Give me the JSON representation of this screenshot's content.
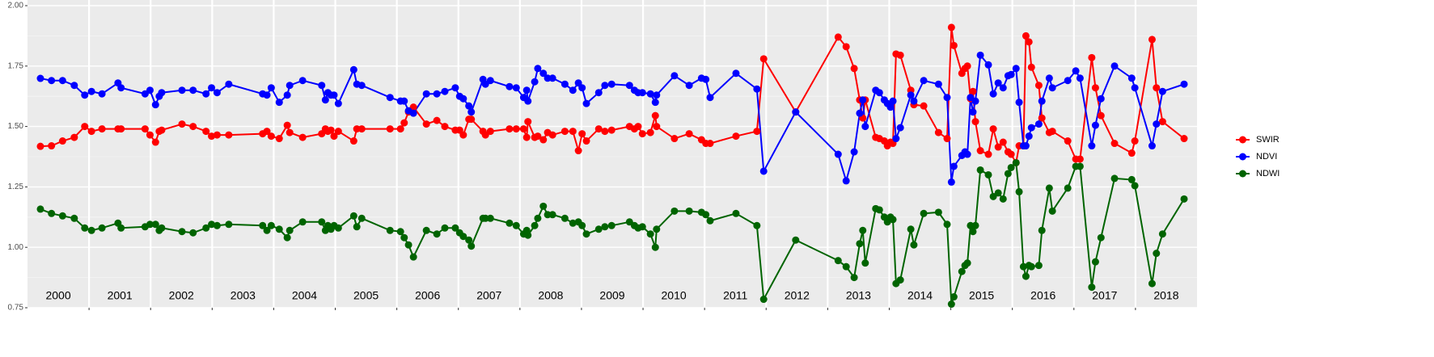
{
  "chart_data": {
    "type": "line",
    "x": [
      2000.21,
      2000.39,
      2000.57,
      2000.76,
      2000.93,
      2001.04,
      2001.21,
      2001.47,
      2001.52,
      2001.91,
      2001.99,
      2002.08,
      2002.14,
      2002.18,
      2002.51,
      2002.69,
      2002.9,
      2002.99,
      2003.08,
      2003.27,
      2003.82,
      2003.89,
      2003.96,
      2004.09,
      2004.22,
      2004.26,
      2004.47,
      2004.78,
      2004.84,
      2004.88,
      2004.93,
      2004.98,
      2005.05,
      2005.3,
      2005.35,
      2005.43,
      2005.89,
      2006.06,
      2006.12,
      2006.19,
      2006.27,
      2006.48,
      2006.65,
      2006.78,
      2006.95,
      2007.02,
      2007.08,
      2007.17,
      2007.21,
      2007.4,
      2007.44,
      2007.52,
      2007.83,
      2007.94,
      2008.06,
      2008.11,
      2008.13,
      2008.24,
      2008.29,
      2008.38,
      2008.45,
      2008.53,
      2008.73,
      2008.86,
      2008.95,
      2009.01,
      2009.08,
      2009.28,
      2009.38,
      2009.49,
      2009.78,
      2009.86,
      2009.92,
      2009.99,
      2010.12,
      2010.2,
      2010.22,
      2010.51,
      2010.75,
      2010.95,
      2011.02,
      2011.09,
      2011.51,
      2011.85,
      2011.96,
      2012.48,
      2013.17,
      2013.3,
      2013.43,
      2013.52,
      2013.57,
      2013.61,
      2013.78,
      2013.84,
      2013.92,
      2013.97,
      2014.02,
      2014.06,
      2014.11,
      2014.18,
      2014.35,
      2014.4,
      2014.56,
      2014.8,
      2014.94,
      2015.01,
      2015.05,
      2015.18,
      2015.23,
      2015.27,
      2015.32,
      2015.36,
      2015.4,
      2015.48,
      2015.61,
      2015.69,
      2015.77,
      2015.85,
      2015.93,
      2015.98,
      2016.06,
      2016.11,
      2016.18,
      2016.22,
      2016.27,
      2016.31,
      2016.43,
      2016.48,
      2016.6,
      2016.65,
      2016.9,
      2017.03,
      2017.1,
      2017.29,
      2017.35,
      2017.44,
      2017.66,
      2017.94,
      2017.99,
      2018.27,
      2018.34,
      2018.44,
      2018.79
    ],
    "series": [
      {
        "name": "SWIR",
        "color": "#ff0000",
        "values": [
          1.418,
          1.42,
          1.44,
          1.455,
          1.5,
          1.48,
          1.49,
          1.49,
          1.49,
          1.49,
          1.465,
          1.435,
          1.48,
          1.485,
          1.51,
          1.5,
          1.48,
          1.46,
          1.465,
          1.465,
          1.47,
          1.48,
          1.46,
          1.45,
          1.505,
          1.475,
          1.455,
          1.47,
          1.49,
          1.48,
          1.485,
          1.46,
          1.48,
          1.44,
          1.49,
          1.49,
          1.49,
          1.49,
          1.515,
          1.56,
          1.58,
          1.51,
          1.525,
          1.5,
          1.485,
          1.485,
          1.465,
          1.53,
          1.53,
          1.48,
          1.465,
          1.48,
          1.49,
          1.49,
          1.49,
          1.455,
          1.52,
          1.455,
          1.46,
          1.445,
          1.475,
          1.465,
          1.48,
          1.48,
          1.4,
          1.47,
          1.44,
          1.49,
          1.48,
          1.485,
          1.5,
          1.49,
          1.5,
          1.47,
          1.475,
          1.545,
          1.5,
          1.45,
          1.47,
          1.445,
          1.43,
          1.43,
          1.46,
          1.48,
          1.78,
          1.56,
          1.87,
          1.83,
          1.74,
          1.61,
          1.535,
          1.61,
          1.455,
          1.45,
          1.44,
          1.42,
          1.435,
          1.43,
          1.8,
          1.795,
          1.65,
          1.59,
          1.585,
          1.475,
          1.45,
          1.91,
          1.835,
          1.72,
          1.74,
          1.75,
          1.615,
          1.645,
          1.52,
          1.4,
          1.385,
          1.49,
          1.415,
          1.435,
          1.395,
          1.385,
          1.35,
          1.42,
          1.42,
          1.875,
          1.85,
          1.745,
          1.67,
          1.535,
          1.475,
          1.48,
          1.44,
          1.365,
          1.365,
          1.785,
          1.66,
          1.545,
          1.43,
          1.39,
          1.44,
          1.86,
          1.66,
          1.52,
          1.45
        ]
      },
      {
        "name": "NDVI",
        "color": "#0000ff",
        "values": [
          1.699,
          1.69,
          1.69,
          1.67,
          1.63,
          1.645,
          1.635,
          1.68,
          1.66,
          1.635,
          1.65,
          1.59,
          1.625,
          1.64,
          1.65,
          1.65,
          1.635,
          1.66,
          1.64,
          1.675,
          1.635,
          1.63,
          1.66,
          1.6,
          1.63,
          1.67,
          1.69,
          1.67,
          1.61,
          1.64,
          1.63,
          1.63,
          1.595,
          1.735,
          1.675,
          1.67,
          1.62,
          1.605,
          1.605,
          1.565,
          1.555,
          1.635,
          1.635,
          1.645,
          1.66,
          1.625,
          1.615,
          1.585,
          1.56,
          1.695,
          1.675,
          1.69,
          1.665,
          1.66,
          1.62,
          1.65,
          1.605,
          1.685,
          1.74,
          1.72,
          1.7,
          1.7,
          1.675,
          1.65,
          1.68,
          1.66,
          1.595,
          1.64,
          1.67,
          1.675,
          1.67,
          1.65,
          1.64,
          1.64,
          1.635,
          1.6,
          1.63,
          1.71,
          1.67,
          1.7,
          1.695,
          1.62,
          1.72,
          1.655,
          1.315,
          1.56,
          1.385,
          1.275,
          1.395,
          1.555,
          1.61,
          1.5,
          1.65,
          1.64,
          1.61,
          1.595,
          1.58,
          1.605,
          1.45,
          1.495,
          1.63,
          1.605,
          1.69,
          1.675,
          1.62,
          1.27,
          1.335,
          1.38,
          1.395,
          1.385,
          1.62,
          1.56,
          1.605,
          1.795,
          1.755,
          1.635,
          1.68,
          1.66,
          1.71,
          1.715,
          1.74,
          1.6,
          1.42,
          1.42,
          1.46,
          1.495,
          1.51,
          1.605,
          1.7,
          1.66,
          1.69,
          1.73,
          1.7,
          1.42,
          1.505,
          1.615,
          1.75,
          1.7,
          1.66,
          1.42,
          1.51,
          1.645,
          1.675
        ]
      },
      {
        "name": "NDWI",
        "color": "#006400",
        "values": [
          1.158,
          1.14,
          1.13,
          1.12,
          1.08,
          1.07,
          1.08,
          1.1,
          1.08,
          1.085,
          1.095,
          1.095,
          1.07,
          1.08,
          1.065,
          1.06,
          1.08,
          1.095,
          1.09,
          1.095,
          1.09,
          1.07,
          1.09,
          1.075,
          1.04,
          1.07,
          1.105,
          1.105,
          1.07,
          1.09,
          1.075,
          1.09,
          1.08,
          1.13,
          1.085,
          1.12,
          1.07,
          1.065,
          1.04,
          1.01,
          0.96,
          1.07,
          1.055,
          1.08,
          1.08,
          1.06,
          1.045,
          1.03,
          1.005,
          1.12,
          1.12,
          1.12,
          1.1,
          1.09,
          1.055,
          1.07,
          1.05,
          1.09,
          1.12,
          1.17,
          1.135,
          1.135,
          1.12,
          1.1,
          1.105,
          1.09,
          1.055,
          1.075,
          1.085,
          1.09,
          1.105,
          1.09,
          1.08,
          1.085,
          1.055,
          1.0,
          1.075,
          1.15,
          1.15,
          1.145,
          1.135,
          1.11,
          1.14,
          1.09,
          0.785,
          1.03,
          0.945,
          0.92,
          0.875,
          1.015,
          1.07,
          0.935,
          1.16,
          1.155,
          1.125,
          1.105,
          1.125,
          1.115,
          0.85,
          0.865,
          1.075,
          1.01,
          1.14,
          1.145,
          1.095,
          0.765,
          0.795,
          0.9,
          0.925,
          0.935,
          1.09,
          1.065,
          1.09,
          1.32,
          1.3,
          1.21,
          1.225,
          1.2,
          1.305,
          1.33,
          1.35,
          1.23,
          0.92,
          0.88,
          0.925,
          0.92,
          0.925,
          1.07,
          1.245,
          1.15,
          1.245,
          1.335,
          1.335,
          0.835,
          0.94,
          1.04,
          1.285,
          1.28,
          1.255,
          0.85,
          0.975,
          1.055,
          1.2
        ]
      }
    ],
    "xlim": [
      2000,
      2019
    ],
    "xticks": [
      {
        "value": 2000.5,
        "label": "2000"
      },
      {
        "value": 2001.5,
        "label": "2001"
      },
      {
        "value": 2002.5,
        "label": "2002"
      },
      {
        "value": 2003.5,
        "label": "2003"
      },
      {
        "value": 2004.5,
        "label": "2004"
      },
      {
        "value": 2005.5,
        "label": "2005"
      },
      {
        "value": 2006.5,
        "label": "2006"
      },
      {
        "value": 2007.5,
        "label": "2007"
      },
      {
        "value": 2008.5,
        "label": "2008"
      },
      {
        "value": 2009.5,
        "label": "2009"
      },
      {
        "value": 2010.5,
        "label": "2010"
      },
      {
        "value": 2011.5,
        "label": "2011"
      },
      {
        "value": 2012.5,
        "label": "2012"
      },
      {
        "value": 2013.5,
        "label": "2013"
      },
      {
        "value": 2014.5,
        "label": "2014"
      },
      {
        "value": 2015.5,
        "label": "2015"
      },
      {
        "value": 2016.5,
        "label": "2016"
      },
      {
        "value": 2017.5,
        "label": "2017"
      },
      {
        "value": 2018.5,
        "label": "2018"
      }
    ],
    "year_lines": [
      2001,
      2002,
      2003,
      2004,
      2005,
      2006,
      2007,
      2008,
      2009,
      2010,
      2011,
      2012,
      2013,
      2014,
      2015,
      2016,
      2017,
      2018
    ],
    "ylim": [
      0.75,
      2.0
    ],
    "yticks": [
      0.75,
      {
        "value": 1.0,
        "label": "1.00"
      },
      1.25,
      {
        "value": 1.5,
        "label": "1.50"
      },
      1.75,
      {
        "value": 2.0,
        "label": "2.00"
      }
    ],
    "minor_yticks": [
      0.875,
      1.125,
      1.375,
      1.625,
      1.875
    ],
    "grid": true,
    "legend": "right"
  }
}
